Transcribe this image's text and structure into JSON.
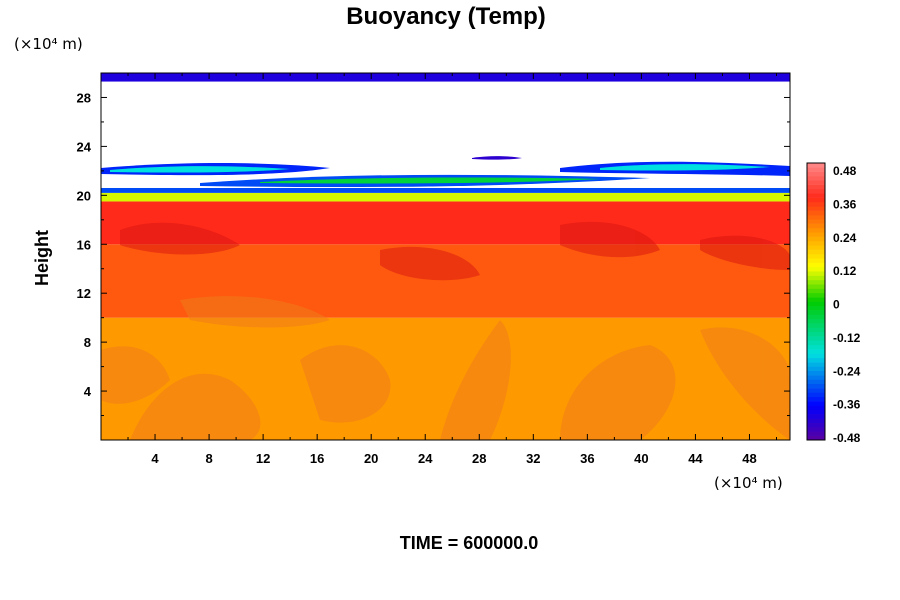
{
  "chart_data": {
    "type": "heatmap",
    "title": "Buoyancy (Temp)",
    "xlabel": "",
    "ylabel": "Height",
    "x_unit": "(×10⁴ m)",
    "y_unit": "(×10⁴ m)",
    "xlim": [
      0,
      51
    ],
    "ylim": [
      0,
      30
    ],
    "x_ticks": [
      4,
      8,
      12,
      16,
      20,
      24,
      28,
      32,
      36,
      40,
      44,
      48
    ],
    "y_ticks": [
      4,
      8,
      12,
      16,
      20,
      24,
      28
    ],
    "footer": "TIME = 600000.0",
    "colorbar": {
      "min": -0.48,
      "max": 0.48,
      "ticks": [
        "0.48",
        "0.36",
        "0.24",
        "0.12",
        "0",
        "-0.12",
        "-0.24",
        "-0.36",
        "-0.48"
      ]
    },
    "bands": [
      {
        "from": 0,
        "to": 10,
        "value": 0.24
      },
      {
        "from": 10,
        "to": 16,
        "value": 0.31
      },
      {
        "from": 16,
        "to": 19.5,
        "value": 0.36
      },
      {
        "from": 19.5,
        "to": 20.2,
        "value": 0.1
      },
      {
        "from": 20.2,
        "to": 20.6,
        "value": -0.3
      },
      {
        "from": 29.3,
        "to": 30,
        "value": -0.4
      }
    ],
    "colors": {
      "low": "#5a00a0",
      "blue": "#0000ff",
      "cyan": "#00e0e0",
      "green": "#00cc00",
      "yellow": "#ffff00",
      "orange": "#ff9900",
      "red": "#ff2a1a",
      "high": "#ff8a8a"
    }
  }
}
